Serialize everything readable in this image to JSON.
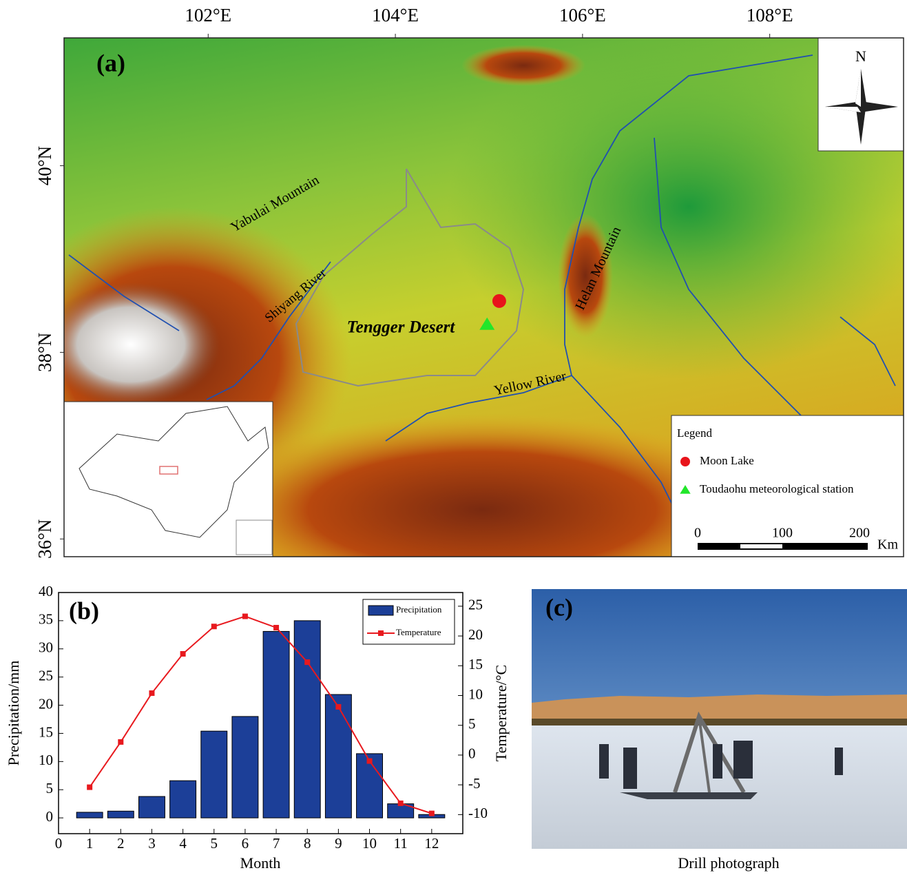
{
  "map": {
    "label": "(a)",
    "xlim": [
      100.46,
      109.43
    ],
    "ylim": [
      35.81,
      41.37
    ],
    "xticks": [
      {
        "value": 102,
        "label": "102°E"
      },
      {
        "value": 104,
        "label": "104°E"
      },
      {
        "value": 106,
        "label": "106°E"
      },
      {
        "value": 108,
        "label": "108°E"
      }
    ],
    "yticks": [
      {
        "value": 40,
        "label": "40°N"
      },
      {
        "value": 38,
        "label": "38°N"
      },
      {
        "value": 36,
        "label": "36°N"
      }
    ],
    "features": [
      "Yabulai Mountain",
      "Shiyang River",
      "Tengger  Desert",
      "Helan Mountain",
      "Yellow River"
    ],
    "north": "N",
    "legend": {
      "title": "Legend",
      "items": [
        {
          "name": "Moon Lake",
          "color": "#e8141b",
          "shape": "circle",
          "lon": 105.11,
          "lat": 38.55
        },
        {
          "name": "Toudaohu meteorological station",
          "color": "#22e62a",
          "shape": "triangle",
          "lon": 104.98,
          "lat": 38.3
        }
      ]
    },
    "scale": {
      "ticks": [
        "0",
        "100",
        "200"
      ],
      "unit": "Km"
    }
  },
  "chart_data": {
    "type": "bar",
    "label": "(b)",
    "x_label": "Month",
    "y_label": "Precipitation/mm",
    "y2_label": "Temperature/°C",
    "x": [
      1,
      2,
      3,
      4,
      5,
      6,
      7,
      8,
      9,
      10,
      11,
      12
    ],
    "series": [
      {
        "name": "Precipitation",
        "type": "bar",
        "color": "#1c3f98",
        "values": [
          1.0,
          1.2,
          3.8,
          6.6,
          15.4,
          18.0,
          33.1,
          35.0,
          21.9,
          11.4,
          2.5,
          0.6
        ]
      },
      {
        "name": "Temperature",
        "type": "line",
        "axis": "y2",
        "color": "#e8191e",
        "values": [
          -5.4,
          2.2,
          10.4,
          17.0,
          21.6,
          23.3,
          21.4,
          15.6,
          8.1,
          -1.0,
          -8.1,
          -9.8
        ]
      }
    ],
    "xlim": [
      0,
      13
    ],
    "xticks": [
      0,
      1,
      2,
      3,
      4,
      5,
      6,
      7,
      8,
      9,
      10,
      11,
      12
    ],
    "ylim": [
      -2.8,
      40
    ],
    "yticks": [
      0,
      5,
      10,
      15,
      20,
      25,
      30,
      35,
      40
    ],
    "y2lim": [
      -13.2,
      27.3
    ],
    "y2ticks": [
      -10,
      -5,
      0,
      5,
      10,
      15,
      20,
      25
    ],
    "legend": "upper right"
  },
  "photo": {
    "label": "(c)",
    "caption": "Drill photograph"
  }
}
